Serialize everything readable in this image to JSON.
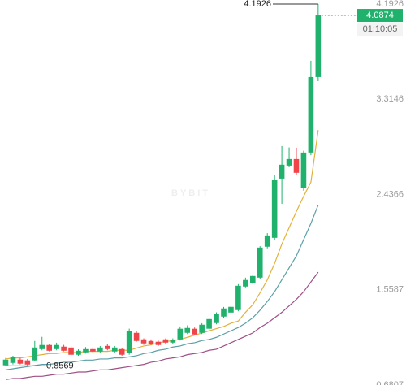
{
  "chart_data": {
    "type": "candlestick",
    "up_color": "#20b26c",
    "down_color": "#ef454a",
    "open": [
      0.862,
      0.884,
      0.914,
      0.907,
      0.907,
      1.011,
      1.049,
      1.011,
      1.034,
      1.026,
      0.959,
      0.981,
      1.011,
      0.989,
      1.041,
      0.989,
      1.011,
      0.974,
      1.161,
      1.101,
      1.086,
      1.079,
      1.101,
      1.071,
      1.101,
      1.161,
      1.199,
      1.161,
      1.199,
      1.251,
      1.311,
      1.348,
      1.371,
      1.588,
      1.618,
      1.67,
      1.955,
      2.037,
      2.583,
      2.703,
      2.763,
      2.493,
      2.823,
      3.519
    ],
    "high": [
      0.93,
      0.95,
      0.93,
      0.92,
      1.086,
      1.124,
      1.06,
      1.07,
      1.05,
      1.04,
      1.01,
      1.03,
      1.03,
      1.04,
      1.06,
      1.04,
      1.02,
      1.2,
      1.18,
      1.11,
      1.1,
      1.09,
      1.11,
      1.11,
      1.22,
      1.23,
      1.21,
      1.25,
      1.3,
      1.35,
      1.4,
      1.42,
      1.61,
      1.67,
      1.7,
      1.96,
      2.08,
      2.62,
      2.883,
      2.87,
      2.868,
      2.84,
      3.669,
      4.1926
    ],
    "low": [
      0.8569,
      0.87,
      0.87,
      0.86,
      0.9,
      1.0,
      0.99,
      1.0,
      0.99,
      0.95,
      0.95,
      0.97,
      0.98,
      0.98,
      1.0,
      0.98,
      0.95,
      0.96,
      1.08,
      1.05,
      1.05,
      1.04,
      1.06,
      1.06,
      1.09,
      1.15,
      1.14,
      1.15,
      1.19,
      1.24,
      1.3,
      1.34,
      1.36,
      1.58,
      1.61,
      1.66,
      1.94,
      2.02,
      2.35,
      2.69,
      2.62,
      2.471,
      2.8,
      3.481
    ],
    "close": [
      0.914,
      0.937,
      0.877,
      0.869,
      1.026,
      1.049,
      0.996,
      1.049,
      0.996,
      0.959,
      0.996,
      1.011,
      0.989,
      1.026,
      1.011,
      1.026,
      0.959,
      1.176,
      1.086,
      1.064,
      1.056,
      1.049,
      1.071,
      1.094,
      1.199,
      1.206,
      1.146,
      1.236,
      1.288,
      1.333,
      1.386,
      1.401,
      1.595,
      1.648,
      1.685,
      1.947,
      2.059,
      2.568,
      2.711,
      2.763,
      2.636,
      2.823,
      3.519,
      4.0874
    ],
    "series": [
      {
        "color": "#e2b13c",
        "values": [
          0.92,
          0.93,
          0.93,
          0.94,
          0.95,
          0.96,
          0.97,
          0.97,
          0.98,
          0.98,
          0.98,
          0.99,
          0.99,
          0.99,
          0.99,
          1.0,
          1.0,
          1.0,
          1.02,
          1.04,
          1.05,
          1.07,
          1.08,
          1.09,
          1.1,
          1.12,
          1.14,
          1.16,
          1.18,
          1.2,
          1.22,
          1.25,
          1.27,
          1.35,
          1.42,
          1.53,
          1.65,
          1.8,
          1.98,
          2.13,
          2.28,
          2.42,
          2.55,
          3.03
        ]
      },
      {
        "color": "#5b9fa6",
        "values": [
          0.82,
          0.83,
          0.84,
          0.85,
          0.86,
          0.87,
          0.87,
          0.88,
          0.89,
          0.89,
          0.9,
          0.91,
          0.91,
          0.92,
          0.92,
          0.93,
          0.93,
          0.94,
          0.95,
          0.97,
          0.98,
          1.0,
          1.01,
          1.03,
          1.04,
          1.06,
          1.07,
          1.09,
          1.1,
          1.12,
          1.15,
          1.18,
          1.21,
          1.25,
          1.3,
          1.37,
          1.45,
          1.54,
          1.65,
          1.76,
          1.87,
          2.02,
          2.17,
          2.34
        ]
      },
      {
        "color": "#a04f86",
        "values": [
          0.73,
          0.74,
          0.74,
          0.75,
          0.76,
          0.76,
          0.77,
          0.78,
          0.78,
          0.79,
          0.8,
          0.8,
          0.81,
          0.82,
          0.82,
          0.83,
          0.84,
          0.85,
          0.86,
          0.87,
          0.89,
          0.9,
          0.92,
          0.93,
          0.94,
          0.96,
          0.97,
          0.98,
          1.0,
          1.01,
          1.04,
          1.07,
          1.1,
          1.13,
          1.16,
          1.21,
          1.25,
          1.3,
          1.35,
          1.41,
          1.47,
          1.54,
          1.63,
          1.72
        ]
      }
    ],
    "ylim": [
      0.68,
      4.23
    ],
    "yticks": [
      4.1926,
      3.3146,
      2.4366,
      1.5587,
      0.6807
    ],
    "watermark": "BYBIT",
    "countdown": "01:10:05"
  }
}
